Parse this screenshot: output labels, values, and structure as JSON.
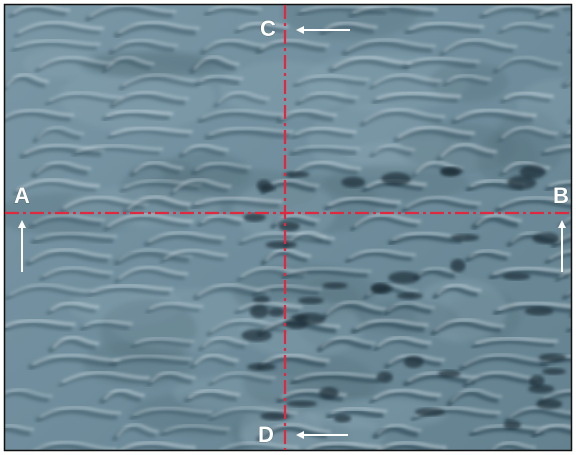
{
  "markers": [
    {
      "label": "A"
    },
    {
      "label": "B"
    },
    {
      "label": "C"
    },
    {
      "label": "D"
    }
  ]
}
